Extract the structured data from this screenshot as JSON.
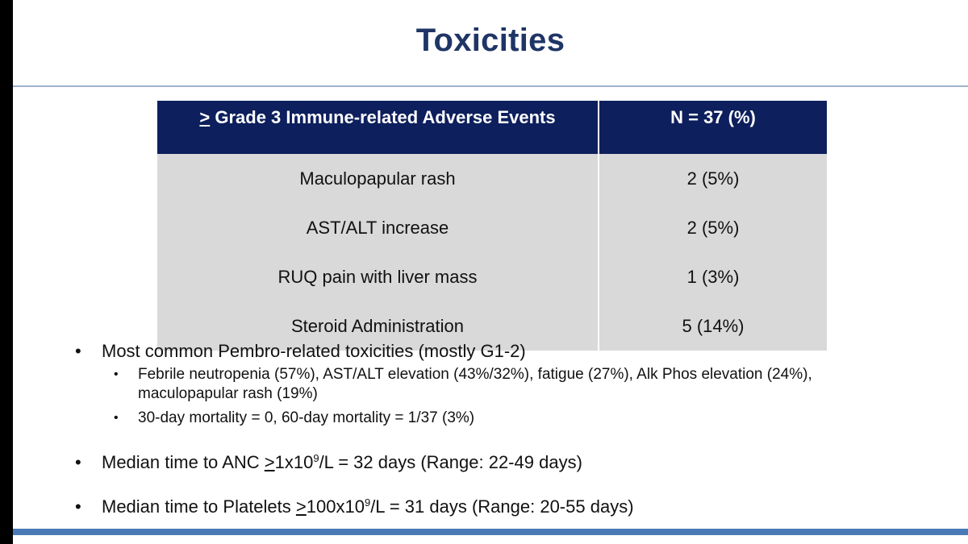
{
  "slide": {
    "title": "Toxicities"
  },
  "table": {
    "header": {
      "col1_symbol": ">",
      "col1_text": " Grade 3 Immune-related Adverse Events",
      "col2": "N = 37 (%)"
    },
    "rows": [
      {
        "event": "Maculopapular rash",
        "n": "2 (5%)"
      },
      {
        "event": "AST/ALT increase",
        "n": "2 (5%)"
      },
      {
        "event": "RUQ pain with liver mass",
        "n": "1 (3%)"
      },
      {
        "event": "Steroid Administration",
        "n": "5 (14%)"
      }
    ]
  },
  "bullets": {
    "item1": {
      "text": "Most common Pembro-related toxicities (mostly G1-2)",
      "sub1": "Febrile neutropenia (57%), AST/ALT elevation (43%/32%), fatigue (27%), Alk Phos elevation (24%), maculopapular rash (19%)",
      "sub2": "30-day mortality = 0, 60-day mortality = 1/37 (3%)"
    },
    "item2": {
      "pre": "Median time to ANC ",
      "ge": ">",
      "mid": "1x10",
      "exp": "9",
      "post": "/L = 32 days (Range: 22-49 days)"
    },
    "item3": {
      "pre": "Median time to Platelets ",
      "ge": ">",
      "mid": "100x10",
      "exp": "9",
      "post": "/L = 31 days (Range: 20-55 days)"
    }
  },
  "bullet_symbol": "•",
  "colors": {
    "title": "#1f3566",
    "table_header": "#0d1f5c",
    "table_body": "#d9d9d9",
    "accent_bar": "#4a7ab5"
  }
}
